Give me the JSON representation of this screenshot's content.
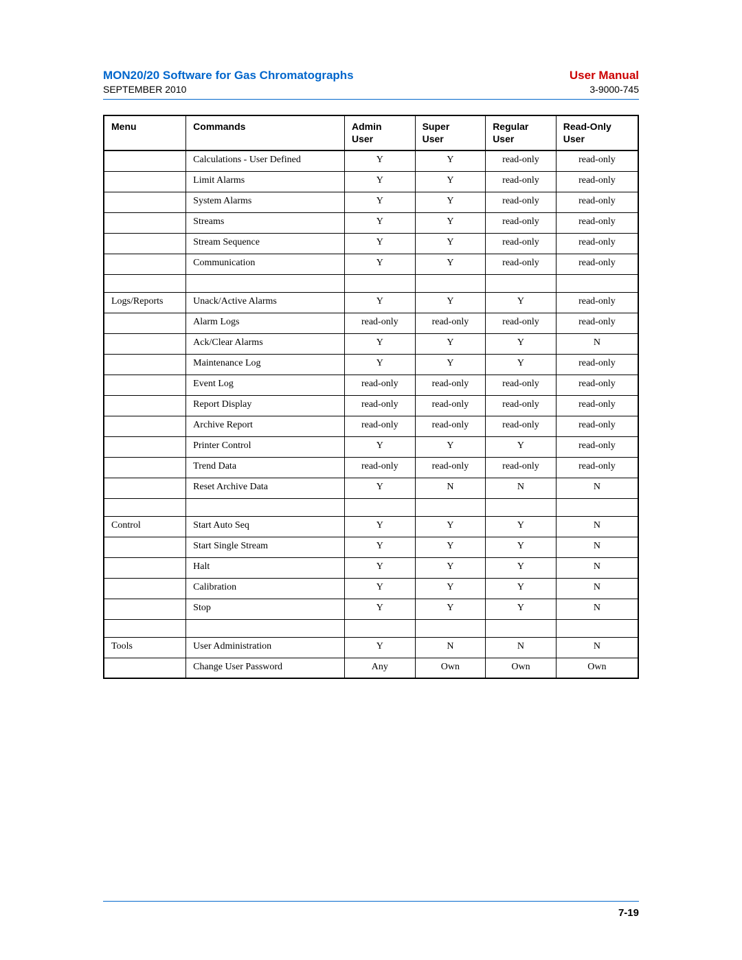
{
  "header": {
    "title": "MON20/20 Software for Gas Chromatographs",
    "manual": "User Manual",
    "date": "SEPTEMBER 2010",
    "docnum": "3-9000-745"
  },
  "table": {
    "columns": [
      "Menu",
      "Commands",
      "Admin User",
      "Super User",
      "Regular User",
      "Read-Only User"
    ],
    "rows": [
      {
        "menu": "",
        "cmd": "Calculations - User Defined",
        "a": "Y",
        "s": "Y",
        "r": "read-only",
        "ro": "read-only"
      },
      {
        "menu": "",
        "cmd": "Limit Alarms",
        "a": "Y",
        "s": "Y",
        "r": "read-only",
        "ro": "read-only"
      },
      {
        "menu": "",
        "cmd": "System Alarms",
        "a": "Y",
        "s": "Y",
        "r": "read-only",
        "ro": "read-only"
      },
      {
        "menu": "",
        "cmd": "Streams",
        "a": "Y",
        "s": "Y",
        "r": "read-only",
        "ro": "read-only"
      },
      {
        "menu": "",
        "cmd": "Stream Sequence",
        "a": "Y",
        "s": "Y",
        "r": "read-only",
        "ro": "read-only"
      },
      {
        "menu": "",
        "cmd": "Communication",
        "a": "Y",
        "s": "Y",
        "r": "read-only",
        "ro": "read-only"
      },
      {
        "spacer": true
      },
      {
        "menu": "Logs/Reports",
        "cmd": "Unack/Active Alarms",
        "a": "Y",
        "s": "Y",
        "r": "Y",
        "ro": "read-only"
      },
      {
        "menu": "",
        "cmd": "Alarm Logs",
        "a": "read-only",
        "s": "read-only",
        "r": "read-only",
        "ro": "read-only"
      },
      {
        "menu": "",
        "cmd": "Ack/Clear Alarms",
        "a": "Y",
        "s": "Y",
        "r": "Y",
        "ro": "N"
      },
      {
        "menu": "",
        "cmd": "Maintenance Log",
        "a": "Y",
        "s": "Y",
        "r": "Y",
        "ro": "read-only"
      },
      {
        "menu": "",
        "cmd": "Event Log",
        "a": "read-only",
        "s": "read-only",
        "r": "read-only",
        "ro": "read-only"
      },
      {
        "menu": "",
        "cmd": "Report Display",
        "a": "read-only",
        "s": "read-only",
        "r": "read-only",
        "ro": "read-only"
      },
      {
        "menu": "",
        "cmd": "Archive Report",
        "a": "read-only",
        "s": "read-only",
        "r": "read-only",
        "ro": "read-only"
      },
      {
        "menu": "",
        "cmd": "Printer Control",
        "a": "Y",
        "s": "Y",
        "r": "Y",
        "ro": "read-only"
      },
      {
        "menu": "",
        "cmd": "Trend Data",
        "a": "read-only",
        "s": "read-only",
        "r": "read-only",
        "ro": "read-only"
      },
      {
        "menu": "",
        "cmd": "Reset Archive Data",
        "a": "Y",
        "s": "N",
        "r": "N",
        "ro": "N"
      },
      {
        "spacer": true
      },
      {
        "menu": "Control",
        "cmd": "Start Auto Seq",
        "a": "Y",
        "s": "Y",
        "r": "Y",
        "ro": "N"
      },
      {
        "menu": "",
        "cmd": "Start Single Stream",
        "a": "Y",
        "s": "Y",
        "r": "Y",
        "ro": "N"
      },
      {
        "menu": "",
        "cmd": "Halt",
        "a": "Y",
        "s": "Y",
        "r": "Y",
        "ro": "N"
      },
      {
        "menu": "",
        "cmd": "Calibration",
        "a": "Y",
        "s": "Y",
        "r": "Y",
        "ro": "N"
      },
      {
        "menu": "",
        "cmd": "Stop",
        "a": "Y",
        "s": "Y",
        "r": "Y",
        "ro": "N"
      },
      {
        "spacer": true
      },
      {
        "menu": "Tools",
        "cmd": "User Administration",
        "a": "Y",
        "s": "N",
        "r": "N",
        "ro": "N"
      },
      {
        "menu": "",
        "cmd": "Change User Password",
        "a": "Any",
        "s": "Own",
        "r": "Own",
        "ro": "Own"
      }
    ]
  },
  "footer": {
    "page": "7-19"
  }
}
